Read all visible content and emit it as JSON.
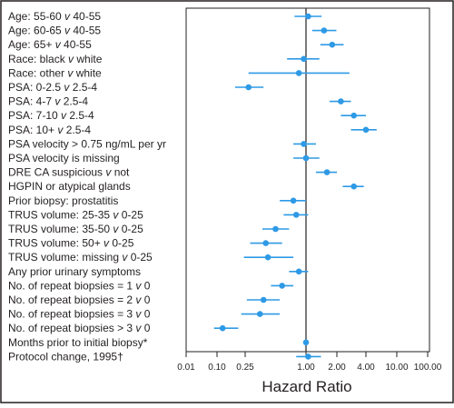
{
  "chart_data": {
    "type": "scatter",
    "title": "",
    "xlabel": "Hazard Ratio",
    "ylabel": "",
    "x_scale": "log",
    "x_ticks": [
      0.01,
      0.1,
      0.25,
      1.0,
      2.0,
      4.0,
      10.0,
      100.0
    ],
    "x_tick_labels": [
      "0.01",
      "0.10",
      "0.25",
      "1.00",
      "2.00",
      "4.00",
      "10.00",
      "100.00"
    ],
    "xlim": [
      0.01,
      100
    ],
    "reference_line": 1.0,
    "marker_color": "#2e9ae6",
    "rows": [
      {
        "label": "Age: 55-60 ",
        "italic": "v",
        "label_tail": " 40-55",
        "hr": 1.05,
        "lo": 0.77,
        "hi": 1.42
      },
      {
        "label": "Age: 60-65 ",
        "italic": "v",
        "label_tail": " 40-55",
        "hr": 1.5,
        "lo": 1.15,
        "hi": 1.98
      },
      {
        "label": "Age: 65+ ",
        "italic": "v",
        "label_tail": " 40-55",
        "hr": 1.8,
        "lo": 1.38,
        "hi": 2.35
      },
      {
        "label": "Race: black ",
        "italic": "v",
        "label_tail": " white",
        "hr": 0.95,
        "lo": 0.65,
        "hi": 1.35
      },
      {
        "label": "Race: other ",
        "italic": "v",
        "label_tail": " white",
        "hr": 0.85,
        "lo": 0.27,
        "hi": 2.7
      },
      {
        "label": "PSA: 0-2.5 ",
        "italic": "v",
        "label_tail": " 2.5-4",
        "hr": 0.27,
        "lo": 0.18,
        "hi": 0.38
      },
      {
        "label": "PSA: 4-7 ",
        "italic": "v",
        "label_tail": " 2.5-4",
        "hr": 2.2,
        "lo": 1.7,
        "hi": 2.8
      },
      {
        "label": "PSA: 7-10 ",
        "italic": "v",
        "label_tail": " 2.5-4",
        "hr": 3.0,
        "lo": 2.2,
        "hi": 4.0
      },
      {
        "label": "PSA: 10+ ",
        "italic": "v",
        "label_tail": " 2.5-4",
        "hr": 4.0,
        "lo": 2.8,
        "hi": 5.5
      },
      {
        "label": "PSA velocity > 0.75 ng/mL per yr",
        "italic": "",
        "label_tail": "",
        "hr": 0.95,
        "lo": 0.75,
        "hi": 1.25
      },
      {
        "label": "PSA velocity is missing",
        "italic": "",
        "label_tail": "",
        "hr": 1.0,
        "lo": 0.75,
        "hi": 1.35
      },
      {
        "label": "DRE CA suspicious ",
        "italic": "v",
        "label_tail": " not",
        "hr": 1.6,
        "lo": 1.25,
        "hi": 2.0
      },
      {
        "label": "HGPIN or atypical glands",
        "italic": "",
        "label_tail": "",
        "hr": 3.0,
        "lo": 2.3,
        "hi": 3.8
      },
      {
        "label": "Prior biopsy: prostatitis",
        "italic": "",
        "label_tail": "",
        "hr": 0.75,
        "lo": 0.55,
        "hi": 1.0
      },
      {
        "label": "TRUS volume: 25-35 ",
        "italic": "v",
        "label_tail": " 0-25",
        "hr": 0.8,
        "lo": 0.6,
        "hi": 1.05
      },
      {
        "label": "TRUS volume: 35-50 ",
        "italic": "v",
        "label_tail": " 0-25",
        "hr": 0.5,
        "lo": 0.37,
        "hi": 0.68
      },
      {
        "label": "TRUS volume: 50+ ",
        "italic": "v",
        "label_tail": " 0-25",
        "hr": 0.4,
        "lo": 0.28,
        "hi": 0.58
      },
      {
        "label": "TRUS volume: missing ",
        "italic": "v",
        "label_tail": " 0-25",
        "hr": 0.42,
        "lo": 0.24,
        "hi": 0.75
      },
      {
        "label": "Any prior urinary symptoms",
        "italic": "",
        "label_tail": "",
        "hr": 0.85,
        "lo": 0.68,
        "hi": 1.05
      },
      {
        "label": "No. of repeat biopsies = 1 ",
        "italic": "v",
        "label_tail": " 0",
        "hr": 0.58,
        "lo": 0.45,
        "hi": 0.75
      },
      {
        "label": "No. of repeat biopsies = 2 ",
        "italic": "v",
        "label_tail": " 0",
        "hr": 0.38,
        "lo": 0.26,
        "hi": 0.55
      },
      {
        "label": "No. of repeat biopsies = 3 ",
        "italic": "v",
        "label_tail": " 0",
        "hr": 0.35,
        "lo": 0.22,
        "hi": 0.55
      },
      {
        "label": "No. of repeat biopsies > 3 ",
        "italic": "v",
        "label_tail": " 0",
        "hr": 0.12,
        "lo": 0.08,
        "hi": 0.2
      },
      {
        "label": "Months prior to initial biopsy*",
        "italic": "",
        "label_tail": "",
        "hr": 1.0,
        "lo": 0.98,
        "hi": 1.02
      },
      {
        "label": "Protocol change, 1995†",
        "italic": "",
        "label_tail": "",
        "hr": 1.05,
        "lo": 0.8,
        "hi": 1.4
      }
    ]
  }
}
